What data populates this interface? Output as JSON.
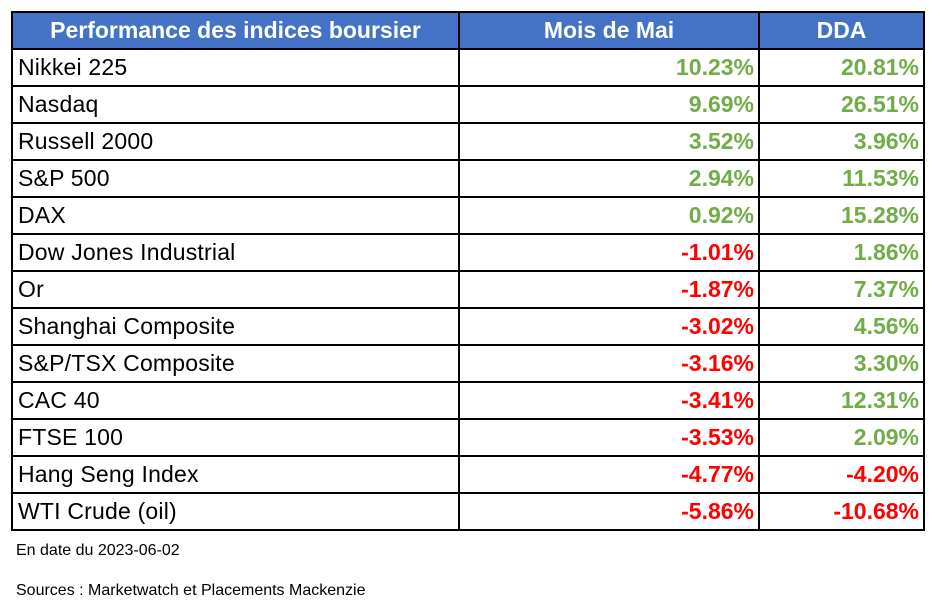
{
  "header": {
    "col_name": "Performance des indices boursier",
    "col_month": "Mois de Mai",
    "col_ytd": "DDA"
  },
  "rows": [
    {
      "name": "Nikkei 225",
      "month": "10.23%",
      "ytd": "20.81%",
      "month_sign": "pos",
      "ytd_sign": "pos"
    },
    {
      "name": "Nasdaq",
      "month": "9.69%",
      "ytd": "26.51%",
      "month_sign": "pos",
      "ytd_sign": "pos"
    },
    {
      "name": "Russell 2000",
      "month": "3.52%",
      "ytd": "3.96%",
      "month_sign": "pos",
      "ytd_sign": "pos"
    },
    {
      "name": "S&P 500",
      "month": "2.94%",
      "ytd": "11.53%",
      "month_sign": "pos",
      "ytd_sign": "pos"
    },
    {
      "name": "DAX",
      "month": "0.92%",
      "ytd": "15.28%",
      "month_sign": "pos",
      "ytd_sign": "pos"
    },
    {
      "name": "Dow Jones Industrial",
      "month": "-1.01%",
      "ytd": "1.86%",
      "month_sign": "neg",
      "ytd_sign": "pos"
    },
    {
      "name": "Or",
      "month": "-1.87%",
      "ytd": "7.37%",
      "month_sign": "neg",
      "ytd_sign": "pos"
    },
    {
      "name": "Shanghai Composite",
      "month": "-3.02%",
      "ytd": "4.56%",
      "month_sign": "neg",
      "ytd_sign": "pos"
    },
    {
      "name": "S&P/TSX Composite",
      "month": "-3.16%",
      "ytd": "3.30%",
      "month_sign": "neg",
      "ytd_sign": "pos"
    },
    {
      "name": "CAC 40",
      "month": "-3.41%",
      "ytd": "12.31%",
      "month_sign": "neg",
      "ytd_sign": "pos"
    },
    {
      "name": "FTSE 100",
      "month": "-3.53%",
      "ytd": "2.09%",
      "month_sign": "neg",
      "ytd_sign": "pos"
    },
    {
      "name": "Hang Seng Index",
      "month": "-4.77%",
      "ytd": "-4.20%",
      "month_sign": "neg",
      "ytd_sign": "neg"
    },
    {
      "name": "WTI Crude (oil)",
      "month": "-5.86%",
      "ytd": "-10.68%",
      "month_sign": "neg",
      "ytd_sign": "neg"
    }
  ],
  "footer": {
    "date_note": "En date du 2023-06-02",
    "sources_note": "Sources : Marketwatch et Placements Mackenzie"
  },
  "colors": {
    "header_bg": "#4472c4",
    "header_text": "#ffffff",
    "positive": "#70ad47",
    "negative": "#ff0000"
  }
}
